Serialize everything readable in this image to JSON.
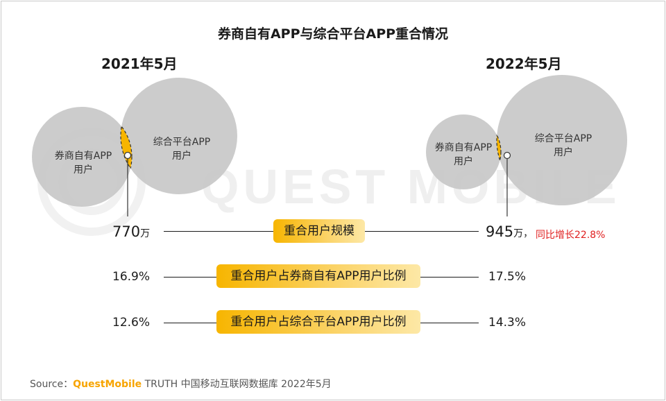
{
  "title": "券商自有APP与综合平台APP重合情况",
  "watermark": "QUEST MOBILE",
  "colors": {
    "overlap": "#f7b500",
    "circle": "#c8c8c8",
    "growth": "#e02020",
    "brand": "#f7a400"
  },
  "periods": [
    {
      "label": "2021年5月",
      "set_a": "券商自有APP\n用户",
      "set_b": "综合平台APP\n用户",
      "overlap_users": "770",
      "overlap_unit": "万",
      "share_of_broker": "16.9%",
      "share_of_platform": "12.6%"
    },
    {
      "label": "2022年5月",
      "set_a": "券商自有APP\n用户",
      "set_b": "综合平台APP\n用户",
      "overlap_users": "945",
      "overlap_unit": "万",
      "separator": "，",
      "growth_text": "同比增长22.8%",
      "share_of_broker": "17.5%",
      "share_of_platform": "14.3%"
    }
  ],
  "metrics": [
    "重合用户规模",
    "重合用户占券商自有APP用户比例",
    "重合用户占综合平台APP用户比例"
  ],
  "chart_data": {
    "type": "venn",
    "title": "券商自有APP与综合平台APP重合情况",
    "sets": [
      "券商自有APP用户",
      "综合平台APP用户"
    ],
    "periods": [
      "2021年5月",
      "2022年5月"
    ],
    "overlap_users_10k": [
      770,
      945
    ],
    "overlap_share_of_broker_pct": [
      16.9,
      17.5
    ],
    "overlap_share_of_platform_pct": [
      12.6,
      14.3
    ],
    "yoy_growth_pct": 22.8
  },
  "source": {
    "prefix": "Source：",
    "brand": "QuestMobile",
    "rest": " TRUTH 中国移动互联网数据库 2022年5月"
  }
}
